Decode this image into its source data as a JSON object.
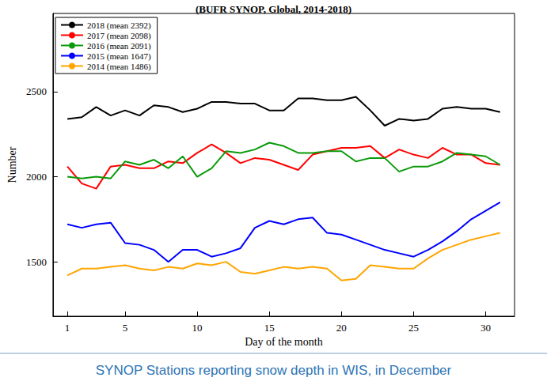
{
  "chart_data": {
    "type": "line",
    "title": "(BUFR SYNOP, Global, 2014-2018)",
    "caption": "SYNOP Stations reporting snow depth in WIS, in December",
    "x_label": "Day of the month",
    "y_label": "Number",
    "x": [
      1,
      2,
      3,
      4,
      5,
      6,
      7,
      8,
      9,
      10,
      11,
      12,
      13,
      14,
      15,
      16,
      17,
      18,
      19,
      20,
      21,
      22,
      23,
      24,
      25,
      26,
      27,
      28,
      29,
      30,
      31
    ],
    "xlim": [
      0,
      32
    ],
    "xticks": [
      1,
      5,
      10,
      15,
      20,
      25,
      30
    ],
    "ylim": [
      1180,
      2960
    ],
    "yticks": [
      1500,
      2000,
      2500
    ],
    "grid": false,
    "legend": "upper left",
    "series": [
      {
        "name": "2018 (mean 2392)",
        "color": "#000000",
        "values": [
          2340,
          2350,
          2410,
          2360,
          2390,
          2360,
          2420,
          2410,
          2380,
          2400,
          2440,
          2440,
          2430,
          2430,
          2390,
          2390,
          2460,
          2460,
          2450,
          2450,
          2470,
          2390,
          2300,
          2340,
          2330,
          2340,
          2400,
          2410,
          2400,
          2400,
          2380
        ]
      },
      {
        "name": "2017 (mean 2098)",
        "color": "#ff0000",
        "values": [
          2060,
          1960,
          1930,
          2060,
          2070,
          2050,
          2050,
          2090,
          2080,
          2140,
          2190,
          2140,
          2080,
          2110,
          2100,
          2070,
          2040,
          2130,
          2150,
          2170,
          2170,
          2180,
          2110,
          2160,
          2130,
          2110,
          2170,
          2130,
          2130,
          2080,
          2070
        ]
      },
      {
        "name": "2016 (mean 2091)",
        "color": "#0a9a0a",
        "values": [
          2000,
          1990,
          2000,
          1990,
          2090,
          2070,
          2100,
          2050,
          2120,
          2000,
          2050,
          2150,
          2140,
          2160,
          2200,
          2180,
          2140,
          2140,
          2150,
          2150,
          2090,
          2110,
          2110,
          2030,
          2060,
          2060,
          2090,
          2140,
          2130,
          2120,
          2070
        ]
      },
      {
        "name": "2015 (mean 1647)",
        "color": "#0000ff",
        "values": [
          1720,
          1700,
          1720,
          1730,
          1610,
          1600,
          1570,
          1500,
          1570,
          1570,
          1530,
          1550,
          1580,
          1700,
          1740,
          1720,
          1750,
          1760,
          1670,
          1660,
          1630,
          1600,
          1570,
          1550,
          1530,
          1570,
          1620,
          1680,
          1750,
          1800,
          1850
        ]
      },
      {
        "name": "2014 (mean 1486)",
        "color": "#ffa500",
        "values": [
          1420,
          1460,
          1460,
          1470,
          1480,
          1460,
          1450,
          1470,
          1460,
          1490,
          1480,
          1500,
          1440,
          1430,
          1450,
          1470,
          1460,
          1470,
          1460,
          1390,
          1400,
          1480,
          1470,
          1460,
          1460,
          1520,
          1570,
          1600,
          1630,
          1650,
          1670
        ]
      }
    ]
  }
}
